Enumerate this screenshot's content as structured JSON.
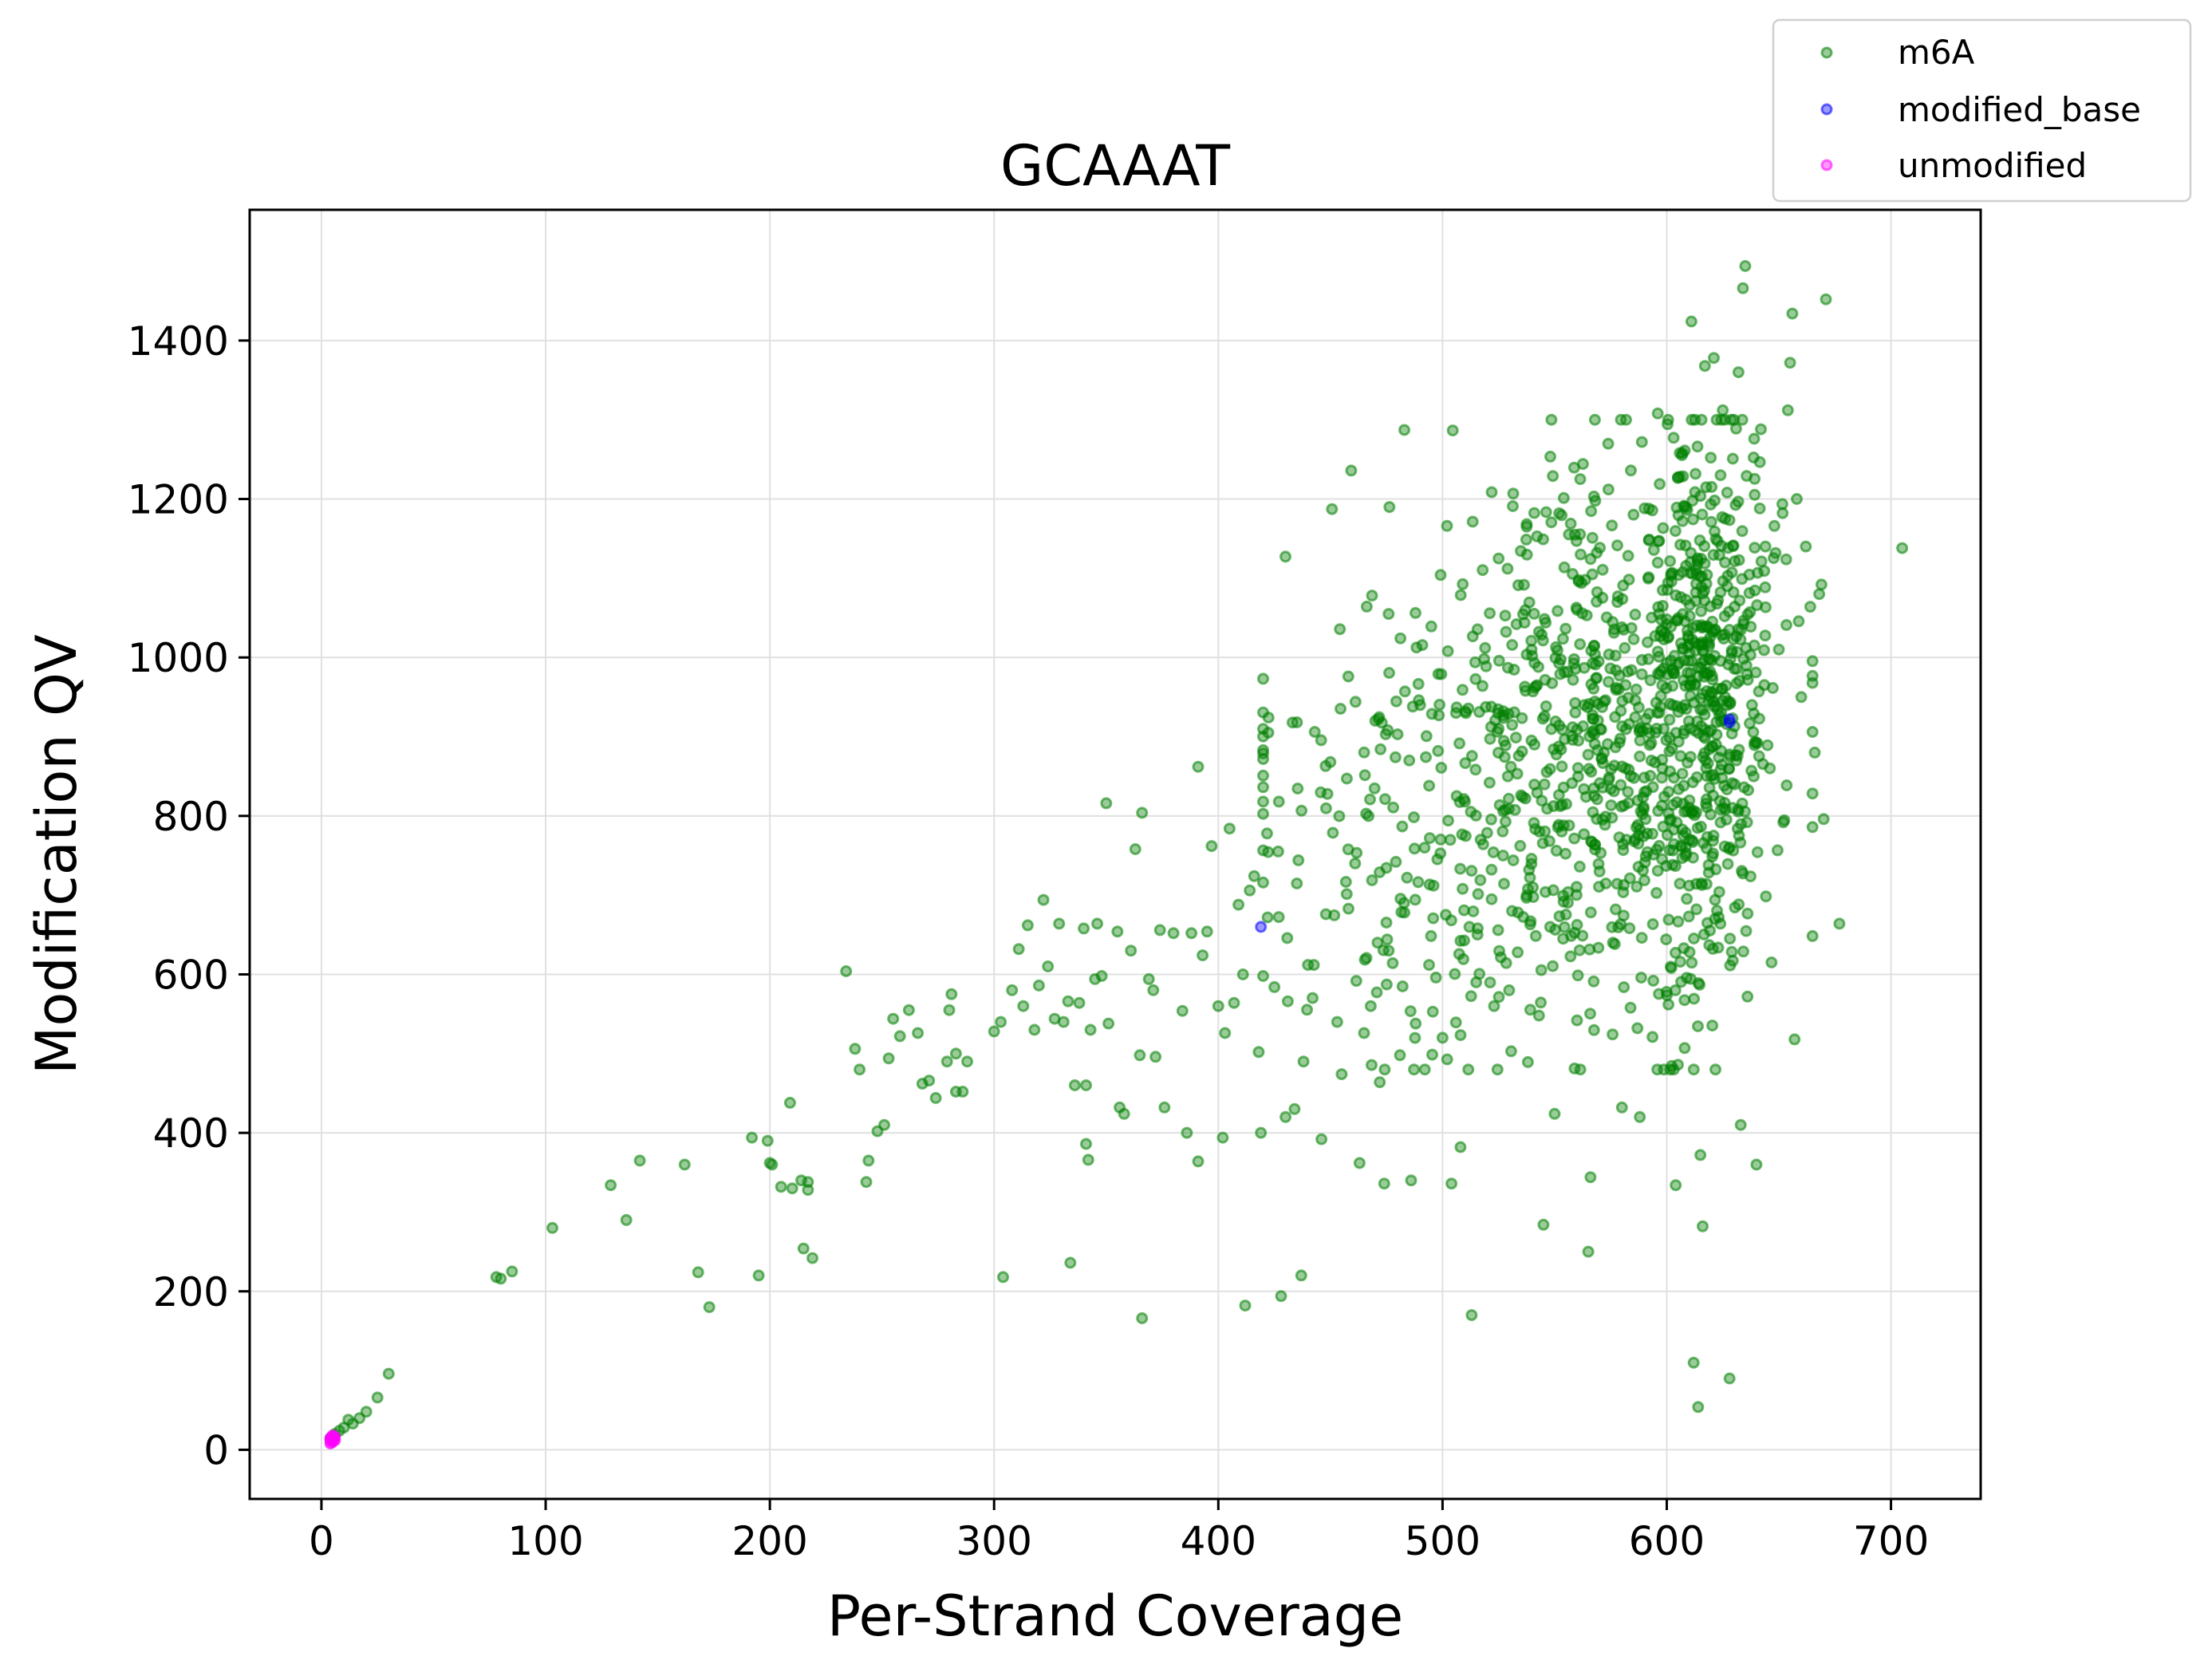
{
  "chart_data": {
    "type": "scatter",
    "title": "GCAAAT",
    "xlabel": "Per-Strand Coverage",
    "ylabel": "Modification QV",
    "xlim": [
      -32,
      740
    ],
    "ylim": [
      -62,
      1565
    ],
    "x_ticks": [
      "0",
      "100",
      "200",
      "300",
      "400",
      "500",
      "600",
      "700"
    ],
    "y_ticks": [
      "0",
      "200",
      "400",
      "600",
      "800",
      "1000",
      "1200",
      "1400"
    ],
    "x_tick_values": [
      0,
      100,
      200,
      300,
      400,
      500,
      600,
      700
    ],
    "y_tick_values": [
      0,
      200,
      400,
      600,
      800,
      1000,
      1200,
      1400
    ],
    "grid": true,
    "legend_position": "top-right, outside plot",
    "series": [
      {
        "name": "m6A",
        "color": "#008000",
        "opacity": 0.4,
        "cluster_main_count": 1200,
        "points": [
          [
            4,
            14
          ],
          [
            6,
            20
          ],
          [
            8,
            24
          ],
          [
            10,
            28
          ],
          [
            12,
            38
          ],
          [
            14,
            33
          ],
          [
            17,
            40
          ],
          [
            20,
            48
          ],
          [
            25,
            66
          ],
          [
            30,
            96
          ],
          [
            78,
            218
          ],
          [
            80,
            216
          ],
          [
            85,
            225
          ],
          [
            103,
            280
          ],
          [
            129,
            334
          ],
          [
            136,
            290
          ],
          [
            142,
            365
          ],
          [
            162,
            360
          ],
          [
            168,
            224
          ],
          [
            173,
            180
          ],
          [
            192,
            394
          ],
          [
            195,
            220
          ],
          [
            199,
            390
          ],
          [
            200,
            362
          ],
          [
            201,
            360
          ],
          [
            205,
            332
          ],
          [
            209,
            438
          ],
          [
            210,
            330
          ],
          [
            214,
            340
          ],
          [
            215,
            254
          ],
          [
            217,
            338
          ],
          [
            217,
            328
          ],
          [
            219,
            242
          ],
          [
            234,
            604
          ],
          [
            238,
            506
          ],
          [
            240,
            480
          ],
          [
            243,
            338
          ],
          [
            244,
            365
          ],
          [
            248,
            402
          ],
          [
            251,
            410
          ],
          [
            253,
            494
          ],
          [
            255,
            544
          ],
          [
            258,
            522
          ],
          [
            262,
            555
          ],
          [
            266,
            526
          ],
          [
            268,
            462
          ],
          [
            271,
            466
          ],
          [
            274,
            444
          ],
          [
            279,
            490
          ],
          [
            280,
            555
          ],
          [
            281,
            575
          ],
          [
            283,
            500
          ],
          [
            283,
            452
          ],
          [
            286,
            452
          ],
          [
            288,
            490
          ],
          [
            300,
            528
          ],
          [
            303,
            540
          ],
          [
            304,
            218
          ],
          [
            308,
            580
          ],
          [
            311,
            632
          ],
          [
            313,
            560
          ],
          [
            315,
            662
          ],
          [
            318,
            530
          ],
          [
            320,
            586
          ],
          [
            322,
            694
          ],
          [
            324,
            610
          ],
          [
            327,
            544
          ],
          [
            329,
            664
          ],
          [
            331,
            540
          ],
          [
            333,
            566
          ],
          [
            334,
            236
          ],
          [
            336,
            460
          ],
          [
            338,
            564
          ],
          [
            340,
            658
          ],
          [
            341,
            460
          ],
          [
            341,
            386
          ],
          [
            342,
            366
          ],
          [
            343,
            530
          ],
          [
            345,
            594
          ],
          [
            346,
            664
          ],
          [
            348,
            598
          ],
          [
            350,
            816
          ],
          [
            351,
            538
          ],
          [
            355,
            654
          ],
          [
            356,
            432
          ],
          [
            358,
            424
          ],
          [
            361,
            630
          ],
          [
            363,
            758
          ],
          [
            365,
            498
          ],
          [
            366,
            166
          ],
          [
            366,
            804
          ],
          [
            369,
            594
          ],
          [
            371,
            580
          ],
          [
            372,
            496
          ],
          [
            374,
            656
          ],
          [
            376,
            432
          ],
          [
            380,
            652
          ],
          [
            384,
            554
          ],
          [
            386,
            400
          ],
          [
            388,
            652
          ],
          [
            391,
            364
          ],
          [
            391,
            862
          ],
          [
            393,
            624
          ],
          [
            395,
            654
          ],
          [
            397,
            762
          ],
          [
            400,
            560
          ],
          [
            402,
            394
          ],
          [
            403,
            526
          ],
          [
            405,
            784
          ],
          [
            407,
            564
          ],
          [
            409,
            688
          ],
          [
            411,
            600
          ],
          [
            412,
            182
          ],
          [
            414,
            706
          ],
          [
            416,
            724
          ],
          [
            418,
            502
          ],
          [
            419,
            400
          ],
          [
            420,
            716
          ],
          [
            422,
            672
          ],
          [
            425,
            584
          ],
          [
            427,
            818
          ],
          [
            428,
            194
          ],
          [
            430,
            420
          ],
          [
            431,
            566
          ],
          [
            434,
            430
          ],
          [
            437,
            220
          ],
          [
            438,
            490
          ],
          [
            440,
            612
          ],
          [
            443,
            906
          ],
          [
            446,
            392
          ],
          [
            448,
            676
          ],
          [
            450,
            868
          ],
          [
            453,
            540
          ],
          [
            455,
            474
          ],
          [
            458,
            976
          ],
          [
            461,
            740
          ],
          [
            463,
            362
          ],
          [
            465,
            526
          ],
          [
            468,
            560
          ],
          [
            470,
            920
          ],
          [
            472,
            464
          ],
          [
            474,
            336
          ],
          [
            476,
            630
          ],
          [
            479,
            874
          ],
          [
            481,
            498
          ],
          [
            483,
            678
          ],
          [
            486,
            340
          ],
          [
            488,
            538
          ],
          [
            490,
            940
          ],
          [
            492,
            760
          ],
          [
            494,
            612
          ],
          [
            496,
            712
          ],
          [
            498,
            882
          ],
          [
            500,
            520
          ],
          [
            502,
            1166
          ],
          [
            504,
            336
          ],
          [
            506,
            930
          ],
          [
            508,
            382
          ],
          [
            510,
            818
          ],
          [
            512,
            660
          ],
          [
            513,
            170
          ],
          [
            515,
            590
          ],
          [
            517,
            770
          ],
          [
            519,
            1012
          ],
          [
            521,
            842
          ],
          [
            523,
            560
          ],
          [
            525,
            910
          ],
          [
            527,
            750
          ],
          [
            529,
            1112
          ],
          [
            531,
            680
          ],
          [
            533,
            1042
          ],
          [
            535,
            826
          ],
          [
            537,
            958
          ],
          [
            539,
            722
          ],
          [
            541,
            890
          ],
          [
            543,
            548
          ],
          [
            545,
            284
          ],
          [
            546,
            1044
          ],
          [
            548,
            660
          ],
          [
            550,
            424
          ],
          [
            552,
            1182
          ],
          [
            554,
            788
          ],
          [
            556,
            704
          ],
          [
            558,
            912
          ],
          [
            560,
            542
          ],
          [
            562,
            1094
          ],
          [
            564,
            824
          ],
          [
            565,
            250
          ],
          [
            566,
            344
          ],
          [
            568,
            1004
          ],
          [
            570,
            730
          ],
          [
            572,
            880
          ],
          [
            574,
            1212
          ],
          [
            576,
            640
          ],
          [
            578,
            1070
          ],
          [
            580,
            432
          ],
          [
            582,
            770
          ],
          [
            584,
            1236
          ],
          [
            586,
            946
          ],
          [
            588,
            420
          ],
          [
            590,
            830
          ],
          [
            592,
            1148
          ],
          [
            594,
            592
          ],
          [
            596,
            1308
          ],
          [
            598,
            860
          ],
          [
            600,
            1042
          ],
          [
            602,
            1106
          ],
          [
            604,
            334
          ],
          [
            605,
            486
          ],
          [
            607,
            1172
          ],
          [
            608,
            940
          ],
          [
            610,
            712
          ],
          [
            611,
            1424
          ],
          [
            612,
            110
          ],
          [
            613,
            1082
          ],
          [
            614,
            54
          ],
          [
            615,
            372
          ],
          [
            616,
            282
          ],
          [
            617,
            1368
          ],
          [
            618,
            1020
          ],
          [
            620,
            996
          ],
          [
            621,
            1378
          ],
          [
            622,
            890
          ],
          [
            624,
            1230
          ],
          [
            625,
            1312
          ],
          [
            626,
            950
          ],
          [
            627,
            1090
          ],
          [
            628,
            90
          ],
          [
            629,
            1006
          ],
          [
            630,
            1300
          ],
          [
            631,
            870
          ],
          [
            632,
            1360
          ],
          [
            633,
            410
          ],
          [
            634,
            1466
          ],
          [
            635,
            1494
          ],
          [
            636,
            572
          ],
          [
            638,
            940
          ],
          [
            639,
            1276
          ],
          [
            640,
            360
          ],
          [
            642,
            1288
          ],
          [
            644,
            1140
          ],
          [
            646,
            860
          ],
          [
            648,
            1166
          ],
          [
            650,
            1010
          ],
          [
            652,
            792
          ],
          [
            654,
            1312
          ],
          [
            655,
            1372
          ],
          [
            656,
            1434
          ],
          [
            657,
            518
          ],
          [
            658,
            1200
          ],
          [
            660,
            950
          ],
          [
            662,
            1140
          ],
          [
            664,
            1064
          ],
          [
            666,
            880
          ],
          [
            668,
            1080
          ],
          [
            669,
            1092
          ],
          [
            670,
            796
          ],
          [
            671,
            1452
          ],
          [
            677,
            664
          ],
          [
            705,
            1138
          ]
        ]
      },
      {
        "name": "modified_base",
        "color": "#0000ff",
        "opacity": 0.4,
        "points": [
          [
            419,
            660
          ],
          [
            628,
            918
          ],
          [
            628,
            922
          ]
        ]
      },
      {
        "name": "unmodified",
        "color": "#ff00ff",
        "opacity": 0.4,
        "points": [
          [
            4,
            12
          ],
          [
            4,
            15
          ],
          [
            5,
            10
          ],
          [
            5,
            13
          ],
          [
            6,
            12
          ],
          [
            4,
            8
          ],
          [
            6,
            16
          ],
          [
            5,
            18
          ]
        ]
      }
    ]
  }
}
